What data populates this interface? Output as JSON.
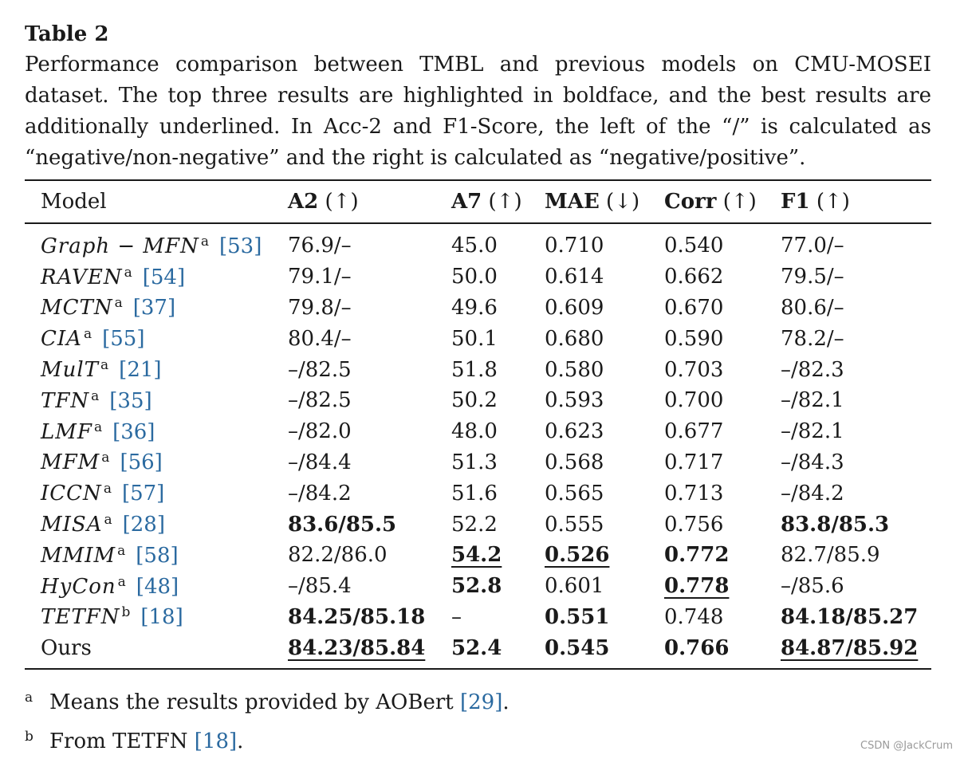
{
  "title": "Table 2",
  "caption": "Performance comparison between TMBL and previous models on CMU-MOSEI dataset. The top three results are highlighted in boldface, and the best results are additionally underlined. In Acc-2 and F1-Score, the left of the “/” is calculated as “negative/non-negative” and the right is calculated as “negative/positive”.",
  "table": {
    "headers": [
      {
        "label": "Model",
        "arrow": ""
      },
      {
        "label": "A2",
        "arrow": "(↑)"
      },
      {
        "label": "A7",
        "arrow": "(↑)"
      },
      {
        "label": "MAE",
        "arrow": "(↓)"
      },
      {
        "label": "Corr",
        "arrow": "(↑)"
      },
      {
        "label": "F1",
        "arrow": "(↑)"
      }
    ],
    "rows": [
      {
        "model": "Graph − MFN",
        "sup": "a",
        "ref": "[53]",
        "cells": [
          {
            "v": "76.9/–"
          },
          {
            "v": "45.0"
          },
          {
            "v": "0.710"
          },
          {
            "v": "0.540"
          },
          {
            "v": "77.0/–"
          }
        ]
      },
      {
        "model": "RAVEN",
        "sup": "a",
        "ref": "[54]",
        "cells": [
          {
            "v": "79.1/–"
          },
          {
            "v": "50.0"
          },
          {
            "v": "0.614"
          },
          {
            "v": "0.662"
          },
          {
            "v": "79.5/–"
          }
        ]
      },
      {
        "model": "MCTN",
        "sup": "a",
        "ref": "[37]",
        "cells": [
          {
            "v": "79.8/–"
          },
          {
            "v": "49.6"
          },
          {
            "v": "0.609"
          },
          {
            "v": "0.670"
          },
          {
            "v": "80.6/–"
          }
        ]
      },
      {
        "model": "CIA",
        "sup": "a",
        "ref": "[55]",
        "cells": [
          {
            "v": "80.4/–"
          },
          {
            "v": "50.1"
          },
          {
            "v": "0.680"
          },
          {
            "v": "0.590"
          },
          {
            "v": "78.2/–"
          }
        ]
      },
      {
        "model": "MulT",
        "sup": "a",
        "ref": "[21]",
        "cells": [
          {
            "v": "–/82.5"
          },
          {
            "v": "51.8"
          },
          {
            "v": "0.580"
          },
          {
            "v": "0.703"
          },
          {
            "v": "–/82.3"
          }
        ]
      },
      {
        "model": "TFN",
        "sup": "a",
        "ref": "[35]",
        "cells": [
          {
            "v": "–/82.5"
          },
          {
            "v": "50.2"
          },
          {
            "v": "0.593"
          },
          {
            "v": "0.700"
          },
          {
            "v": "–/82.1"
          }
        ]
      },
      {
        "model": "LMF",
        "sup": "a",
        "ref": "[36]",
        "cells": [
          {
            "v": "–/82.0"
          },
          {
            "v": "48.0"
          },
          {
            "v": "0.623"
          },
          {
            "v": "0.677"
          },
          {
            "v": "–/82.1"
          }
        ]
      },
      {
        "model": "MFM",
        "sup": "a",
        "ref": "[56]",
        "cells": [
          {
            "v": "–/84.4"
          },
          {
            "v": "51.3"
          },
          {
            "v": "0.568"
          },
          {
            "v": "0.717"
          },
          {
            "v": "–/84.3"
          }
        ]
      },
      {
        "model": "ICCN",
        "sup": "a",
        "ref": "[57]",
        "cells": [
          {
            "v": "–/84.2"
          },
          {
            "v": "51.6"
          },
          {
            "v": "0.565"
          },
          {
            "v": "0.713"
          },
          {
            "v": "–/84.2"
          }
        ]
      },
      {
        "model": "MISA",
        "sup": "a",
        "ref": "[28]",
        "cells": [
          {
            "v": "83.6/85.5",
            "b": true
          },
          {
            "v": "52.2"
          },
          {
            "v": "0.555"
          },
          {
            "v": "0.756"
          },
          {
            "v": "83.8/85.3",
            "b": true
          }
        ]
      },
      {
        "model": "MMIM",
        "sup": "a",
        "ref": "[58]",
        "cells": [
          {
            "v": "82.2/86.0"
          },
          {
            "v": "54.2",
            "b": true,
            "u": true
          },
          {
            "v": "0.526",
            "b": true,
            "u": true
          },
          {
            "v": "0.772",
            "b": true
          },
          {
            "v": "82.7/85.9"
          }
        ]
      },
      {
        "model": "HyCon",
        "sup": "a",
        "ref": "[48]",
        "cells": [
          {
            "v": "–/85.4"
          },
          {
            "v": "52.8",
            "b": true
          },
          {
            "v": "0.601"
          },
          {
            "v": "0.778",
            "b": true,
            "u": true
          },
          {
            "v": "–/85.6"
          }
        ]
      },
      {
        "model": "TETFN",
        "sup": "b",
        "ref": "[18]",
        "cells": [
          {
            "v": "84.25/85.18",
            "b": true
          },
          {
            "v": "–"
          },
          {
            "v": "0.551",
            "b": true
          },
          {
            "v": "0.748"
          },
          {
            "v": "84.18/85.27",
            "b": true
          }
        ]
      },
      {
        "model": "Ours",
        "sup": "",
        "ref": "",
        "plain": true,
        "cells": [
          {
            "v": "84.23/85.84",
            "b": true,
            "u": true
          },
          {
            "v": "52.4",
            "b": true
          },
          {
            "v": "0.545",
            "b": true
          },
          {
            "v": "0.766",
            "b": true
          },
          {
            "v": "84.87/85.92",
            "b": true,
            "u": true
          }
        ]
      }
    ]
  },
  "footnotes": [
    {
      "marker": "a",
      "text": "Means the results provided by AOBert ",
      "ref": "[29]",
      "tail": "."
    },
    {
      "marker": "b",
      "text": "From TETFN ",
      "ref": "[18]",
      "tail": "."
    }
  ],
  "watermark": "CSDN @JackCrum",
  "colors": {
    "reference_link": "#2b6aa0",
    "text": "#1a1a1a"
  }
}
